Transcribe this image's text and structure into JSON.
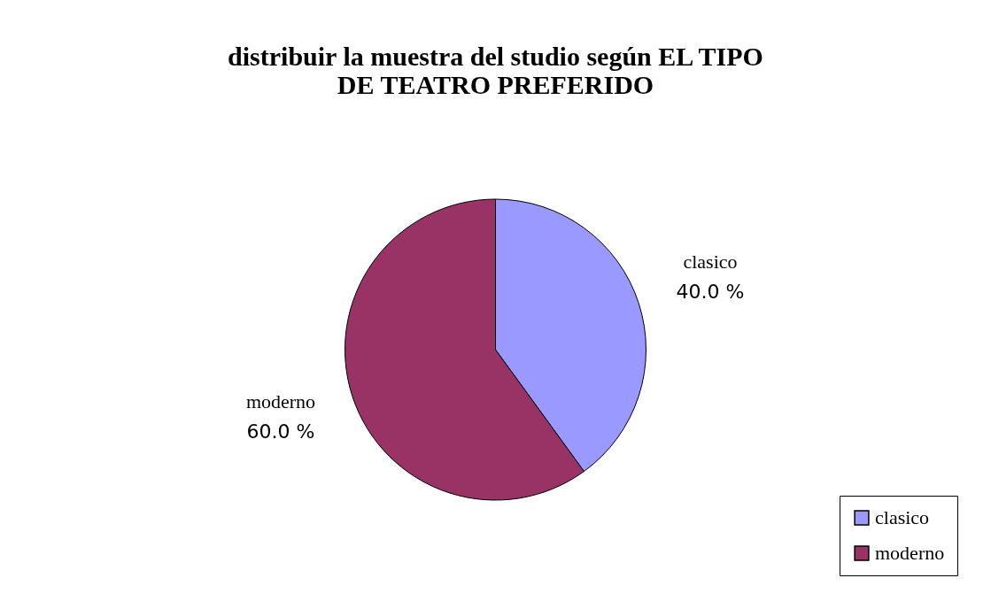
{
  "chart_data": {
    "type": "pie",
    "title": "distribuir la muestra del studio según EL TIPO DE TEATRO PREFERIDO",
    "categories": [
      "clasico",
      "moderno"
    ],
    "values": [
      40.0,
      60.0
    ],
    "colors": [
      "#9999ff",
      "#993366"
    ],
    "value_labels": [
      "40.0 %",
      "60.0 %"
    ],
    "legend": "bottom right"
  }
}
